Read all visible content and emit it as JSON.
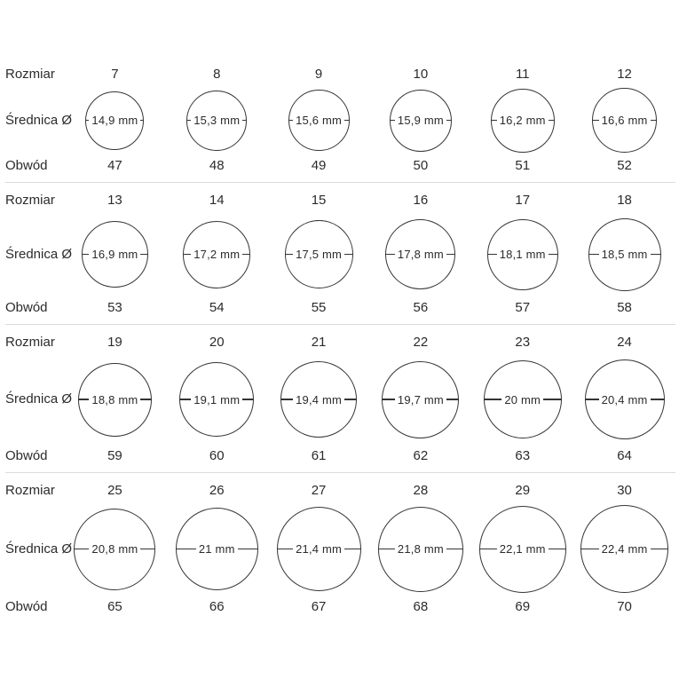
{
  "labels": {
    "size": "Rozmiar",
    "diameter": "Średnica Ø",
    "circumference": "Obwód"
  },
  "unit": "mm",
  "colors": {
    "text": "#2b2b2b",
    "circle_stroke": "#343434",
    "separator": "#dadada",
    "background": "#ffffff"
  },
  "rows": [
    {
      "cells": [
        {
          "size": "7",
          "diameter": "14,9",
          "diameter_mm": 14.9,
          "circumference": "47"
        },
        {
          "size": "8",
          "diameter": "15,3",
          "diameter_mm": 15.3,
          "circumference": "48"
        },
        {
          "size": "9",
          "diameter": "15,6",
          "diameter_mm": 15.6,
          "circumference": "49"
        },
        {
          "size": "10",
          "diameter": "15,9",
          "diameter_mm": 15.9,
          "circumference": "50"
        },
        {
          "size": "11",
          "diameter": "16,2",
          "diameter_mm": 16.2,
          "circumference": "51"
        },
        {
          "size": "12",
          "diameter": "16,6",
          "diameter_mm": 16.6,
          "circumference": "52"
        }
      ]
    },
    {
      "cells": [
        {
          "size": "13",
          "diameter": "16,9",
          "diameter_mm": 16.9,
          "circumference": "53"
        },
        {
          "size": "14",
          "diameter": "17,2",
          "diameter_mm": 17.2,
          "circumference": "54"
        },
        {
          "size": "15",
          "diameter": "17,5",
          "diameter_mm": 17.5,
          "circumference": "55"
        },
        {
          "size": "16",
          "diameter": "17,8",
          "diameter_mm": 17.8,
          "circumference": "56"
        },
        {
          "size": "17",
          "diameter": "18,1",
          "diameter_mm": 18.1,
          "circumference": "57"
        },
        {
          "size": "18",
          "diameter": "18,5",
          "diameter_mm": 18.5,
          "circumference": "58"
        }
      ]
    },
    {
      "cells": [
        {
          "size": "19",
          "diameter": "18,8",
          "diameter_mm": 18.8,
          "circumference": "59"
        },
        {
          "size": "20",
          "diameter": "19,1",
          "diameter_mm": 19.1,
          "circumference": "60"
        },
        {
          "size": "21",
          "diameter": "19,4",
          "diameter_mm": 19.4,
          "circumference": "61"
        },
        {
          "size": "22",
          "diameter": "19,7",
          "diameter_mm": 19.7,
          "circumference": "62"
        },
        {
          "size": "23",
          "diameter": "20",
          "diameter_mm": 20.0,
          "circumference": "63"
        },
        {
          "size": "24",
          "diameter": "20,4",
          "diameter_mm": 20.4,
          "circumference": "64"
        }
      ]
    },
    {
      "cells": [
        {
          "size": "25",
          "diameter": "20,8",
          "diameter_mm": 20.8,
          "circumference": "65"
        },
        {
          "size": "26",
          "diameter": "21",
          "diameter_mm": 21.0,
          "circumference": "66"
        },
        {
          "size": "27",
          "diameter": "21,4",
          "diameter_mm": 21.4,
          "circumference": "67"
        },
        {
          "size": "28",
          "diameter": "21,8",
          "diameter_mm": 21.8,
          "circumference": "68"
        },
        {
          "size": "29",
          "diameter": "22,1",
          "diameter_mm": 22.1,
          "circumference": "69"
        },
        {
          "size": "30",
          "diameter": "22,4",
          "diameter_mm": 22.4,
          "circumference": "70"
        }
      ]
    }
  ]
}
